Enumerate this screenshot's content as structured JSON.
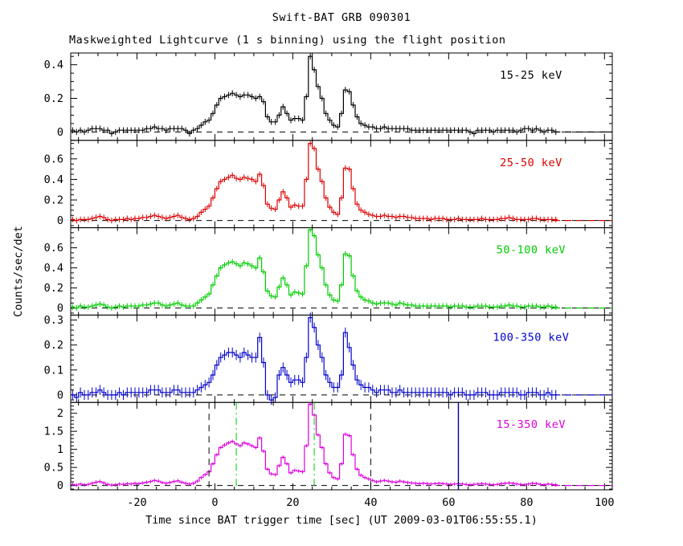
{
  "title": "Swift-BAT GRB 090301",
  "subtitle": "Maskweighted Lightcurve (1 s binning) using the flight position",
  "xlabel": "Time since BAT trigger time [sec] (UT 2009-03-01T06:55:55.1)",
  "ylabel": "Counts/sec/det",
  "chart_data": {
    "type": "line",
    "style": "step-histogram",
    "x_start": -37,
    "x_step": 1,
    "xlim": [
      -37,
      102
    ],
    "x_ticks": [
      -20,
      0,
      20,
      40,
      60,
      80,
      100
    ],
    "x_minor_step": 5,
    "data_end_time": 87,
    "grid": false,
    "legend_position": "in-panel-right",
    "series": [
      {
        "name": "15-25 keV",
        "color": "#000000",
        "ylim": [
          -0.05,
          0.47
        ],
        "yticks": [
          0,
          0.2,
          0.4
        ],
        "ytick_minor": 0.05,
        "err": 0.018,
        "values": [
          0.01,
          0.0,
          0.01,
          0.0,
          0.01,
          0.02,
          0.02,
          0.02,
          0.01,
          0.01,
          -0.01,
          0.0,
          0.01,
          0.01,
          0.01,
          0.01,
          0.01,
          0.01,
          0.01,
          0.02,
          0.02,
          0.03,
          0.02,
          0.02,
          0.01,
          0.02,
          0.02,
          0.02,
          0.02,
          0.01,
          -0.01,
          0.01,
          0.02,
          0.04,
          0.06,
          0.07,
          0.11,
          0.16,
          0.2,
          0.21,
          0.22,
          0.23,
          0.22,
          0.21,
          0.22,
          0.22,
          0.21,
          0.2,
          0.21,
          0.18,
          0.09,
          0.06,
          0.06,
          0.1,
          0.15,
          0.11,
          0.07,
          0.08,
          0.08,
          0.07,
          0.21,
          0.45,
          0.37,
          0.27,
          0.2,
          0.11,
          0.07,
          0.04,
          0.03,
          0.11,
          0.25,
          0.24,
          0.16,
          0.09,
          0.05,
          0.04,
          0.03,
          0.03,
          0.02,
          0.02,
          0.03,
          0.02,
          0.02,
          0.02,
          0.02,
          0.02,
          0.02,
          0.01,
          0.01,
          0.01,
          0.01,
          0.01,
          0.01,
          0.01,
          0.01,
          0.01,
          0.01,
          0.01,
          0.01,
          0.01,
          0.01,
          0.01,
          0.0,
          -0.01,
          0.01,
          0.01,
          0.01,
          0.01,
          0.0,
          0.01,
          0.01,
          0.01,
          0.01,
          0.01,
          0.0,
          0.01,
          0.02,
          0.02,
          0.01,
          0.02,
          0.01,
          0.0,
          0.01,
          0.01,
          0.0
        ]
      },
      {
        "name": "25-50 keV",
        "color": "#dd0000",
        "ylim": [
          -0.07,
          0.78
        ],
        "yticks": [
          0,
          0.2,
          0.4,
          0.6
        ],
        "ytick_minor": 0.05,
        "err": 0.028,
        "values": [
          0.01,
          0.0,
          0.01,
          0.01,
          0.01,
          0.02,
          0.03,
          0.04,
          0.03,
          0.01,
          0.0,
          0.01,
          0.01,
          0.01,
          0.02,
          0.01,
          0.02,
          0.02,
          0.03,
          0.03,
          0.04,
          0.05,
          0.04,
          0.03,
          0.02,
          0.03,
          0.04,
          0.05,
          0.03,
          0.02,
          0.01,
          0.02,
          0.04,
          0.08,
          0.11,
          0.14,
          0.22,
          0.31,
          0.38,
          0.4,
          0.42,
          0.44,
          0.41,
          0.4,
          0.42,
          0.41,
          0.4,
          0.38,
          0.45,
          0.34,
          0.16,
          0.12,
          0.11,
          0.2,
          0.28,
          0.22,
          0.13,
          0.15,
          0.14,
          0.14,
          0.4,
          0.75,
          0.7,
          0.5,
          0.38,
          0.22,
          0.13,
          0.08,
          0.06,
          0.22,
          0.51,
          0.5,
          0.31,
          0.16,
          0.1,
          0.08,
          0.06,
          0.05,
          0.04,
          0.04,
          0.05,
          0.04,
          0.04,
          0.03,
          0.04,
          0.04,
          0.03,
          0.03,
          0.02,
          0.02,
          0.02,
          0.02,
          0.01,
          0.02,
          0.02,
          0.02,
          0.01,
          0.01,
          0.01,
          0.02,
          0.01,
          0.01,
          0.01,
          0.01,
          0.01,
          0.02,
          0.01,
          0.01,
          0.01,
          0.01,
          0.02,
          0.02,
          0.03,
          0.02,
          0.01,
          0.01,
          0.01,
          0.01,
          0.02,
          0.02,
          0.01,
          0.01,
          0.01,
          0.01,
          0.01
        ]
      },
      {
        "name": "50-100 keV",
        "color": "#00cc00",
        "ylim": [
          -0.07,
          0.8
        ],
        "yticks": [
          0,
          0.2,
          0.4,
          0.6
        ],
        "ytick_minor": 0.05,
        "err": 0.028,
        "values": [
          0.01,
          0.0,
          0.02,
          0.01,
          0.01,
          0.02,
          0.03,
          0.04,
          0.03,
          0.01,
          0.0,
          0.01,
          0.02,
          0.01,
          0.02,
          0.02,
          0.02,
          0.02,
          0.03,
          0.03,
          0.04,
          0.05,
          0.05,
          0.03,
          0.02,
          0.03,
          0.04,
          0.05,
          0.03,
          0.02,
          0.02,
          0.02,
          0.05,
          0.08,
          0.11,
          0.14,
          0.23,
          0.32,
          0.4,
          0.43,
          0.45,
          0.46,
          0.44,
          0.42,
          0.45,
          0.44,
          0.42,
          0.4,
          0.5,
          0.36,
          0.17,
          0.12,
          0.11,
          0.21,
          0.3,
          0.23,
          0.13,
          0.16,
          0.15,
          0.14,
          0.42,
          0.78,
          0.72,
          0.53,
          0.4,
          0.23,
          0.13,
          0.08,
          0.07,
          0.23,
          0.54,
          0.52,
          0.32,
          0.17,
          0.11,
          0.08,
          0.07,
          0.05,
          0.04,
          0.05,
          0.05,
          0.05,
          0.04,
          0.03,
          0.05,
          0.04,
          0.03,
          0.03,
          0.02,
          0.02,
          0.02,
          0.02,
          0.02,
          0.02,
          0.02,
          0.02,
          0.02,
          0.01,
          0.02,
          0.02,
          0.02,
          0.01,
          0.01,
          0.01,
          0.02,
          0.02,
          0.02,
          0.01,
          0.01,
          0.01,
          0.02,
          0.02,
          0.03,
          0.02,
          0.02,
          0.01,
          0.01,
          0.02,
          0.02,
          0.02,
          0.01,
          0.01,
          0.02,
          0.01,
          0.01
        ]
      },
      {
        "name": "100-350 keV",
        "color": "#0000cc",
        "ylim": [
          -0.03,
          0.32
        ],
        "yticks": [
          0,
          0.1,
          0.2,
          0.3
        ],
        "ytick_minor": 0.02,
        "err": 0.02,
        "values": [
          0.0,
          -0.01,
          0.01,
          0.0,
          0.0,
          0.01,
          0.01,
          0.02,
          0.01,
          0.0,
          0.0,
          0.0,
          0.01,
          0.0,
          0.01,
          0.01,
          0.01,
          0.01,
          0.01,
          0.01,
          0.02,
          0.02,
          0.02,
          0.01,
          0.01,
          0.01,
          0.02,
          0.02,
          0.01,
          0.01,
          0.01,
          0.01,
          0.02,
          0.03,
          0.04,
          0.05,
          0.08,
          0.12,
          0.15,
          0.16,
          0.17,
          0.17,
          0.16,
          0.15,
          0.17,
          0.16,
          0.15,
          0.15,
          0.23,
          0.13,
          0.0,
          -0.02,
          -0.01,
          0.08,
          0.11,
          0.08,
          0.05,
          0.06,
          0.06,
          0.05,
          0.15,
          0.31,
          0.27,
          0.2,
          0.15,
          0.08,
          0.05,
          0.03,
          0.03,
          0.08,
          0.25,
          0.19,
          0.12,
          0.06,
          0.04,
          0.03,
          0.03,
          0.02,
          0.01,
          0.02,
          0.02,
          0.02,
          0.01,
          0.01,
          0.02,
          0.01,
          0.01,
          0.01,
          0.01,
          0.01,
          0.01,
          0.01,
          0.01,
          0.01,
          0.01,
          0.01,
          0.01,
          0.0,
          0.01,
          0.01,
          0.01,
          0.0,
          0.0,
          0.0,
          0.01,
          0.01,
          0.01,
          0.0,
          0.0,
          0.0,
          0.01,
          0.01,
          0.01,
          0.01,
          0.01,
          0.0,
          0.0,
          0.01,
          0.01,
          0.01,
          0.0,
          0.0,
          0.01,
          0.0,
          0.0
        ]
      },
      {
        "name": "15-350 keV",
        "color": "#dd00dd",
        "ylim": [
          -0.12,
          2.3
        ],
        "yticks": [
          0,
          0.5,
          1,
          1.5,
          2
        ],
        "ytick_minor": 0.1,
        "err": 0.05,
        "values": [
          0.03,
          0.01,
          0.04,
          0.02,
          0.03,
          0.06,
          0.09,
          0.11,
          0.07,
          0.03,
          0.01,
          0.02,
          0.04,
          0.03,
          0.05,
          0.04,
          0.06,
          0.05,
          0.07,
          0.09,
          0.11,
          0.14,
          0.12,
          0.08,
          0.06,
          0.08,
          0.11,
          0.13,
          0.09,
          0.06,
          0.04,
          0.06,
          0.12,
          0.22,
          0.3,
          0.38,
          0.6,
          0.85,
          1.05,
          1.12,
          1.18,
          1.22,
          1.15,
          1.1,
          1.18,
          1.15,
          1.1,
          1.05,
          1.32,
          0.95,
          0.45,
          0.32,
          0.3,
          0.55,
          0.78,
          0.6,
          0.35,
          0.42,
          0.4,
          0.38,
          1.1,
          2.25,
          1.95,
          1.4,
          1.05,
          0.6,
          0.35,
          0.22,
          0.18,
          0.6,
          1.42,
          1.38,
          0.85,
          0.45,
          0.28,
          0.22,
          0.18,
          0.14,
          0.1,
          0.12,
          0.14,
          0.12,
          0.1,
          0.09,
          0.12,
          0.1,
          0.08,
          0.07,
          0.06,
          0.05,
          0.06,
          0.05,
          0.04,
          0.05,
          0.06,
          0.05,
          0.04,
          0.03,
          0.04,
          0.05,
          0.04,
          0.03,
          0.02,
          0.03,
          0.04,
          0.05,
          0.04,
          0.03,
          0.02,
          0.03,
          0.05,
          0.06,
          0.07,
          0.06,
          0.04,
          0.03,
          0.02,
          0.04,
          0.06,
          0.05,
          0.03,
          0.02,
          0.04,
          0.03,
          0.02
        ]
      }
    ],
    "annotations": {
      "black_dashed_vlines_t": [
        -1.5,
        40
      ],
      "green_dashdot_vlines_t": [
        5.5,
        25.5
      ],
      "green_dashdot_color": "#00cc00",
      "navy_solid_vlines_t": [
        62.5
      ],
      "navy_color": "#000099"
    },
    "colors": {
      "frame": "#000000",
      "background": "#ffffff",
      "zero_line": "#000000"
    }
  }
}
